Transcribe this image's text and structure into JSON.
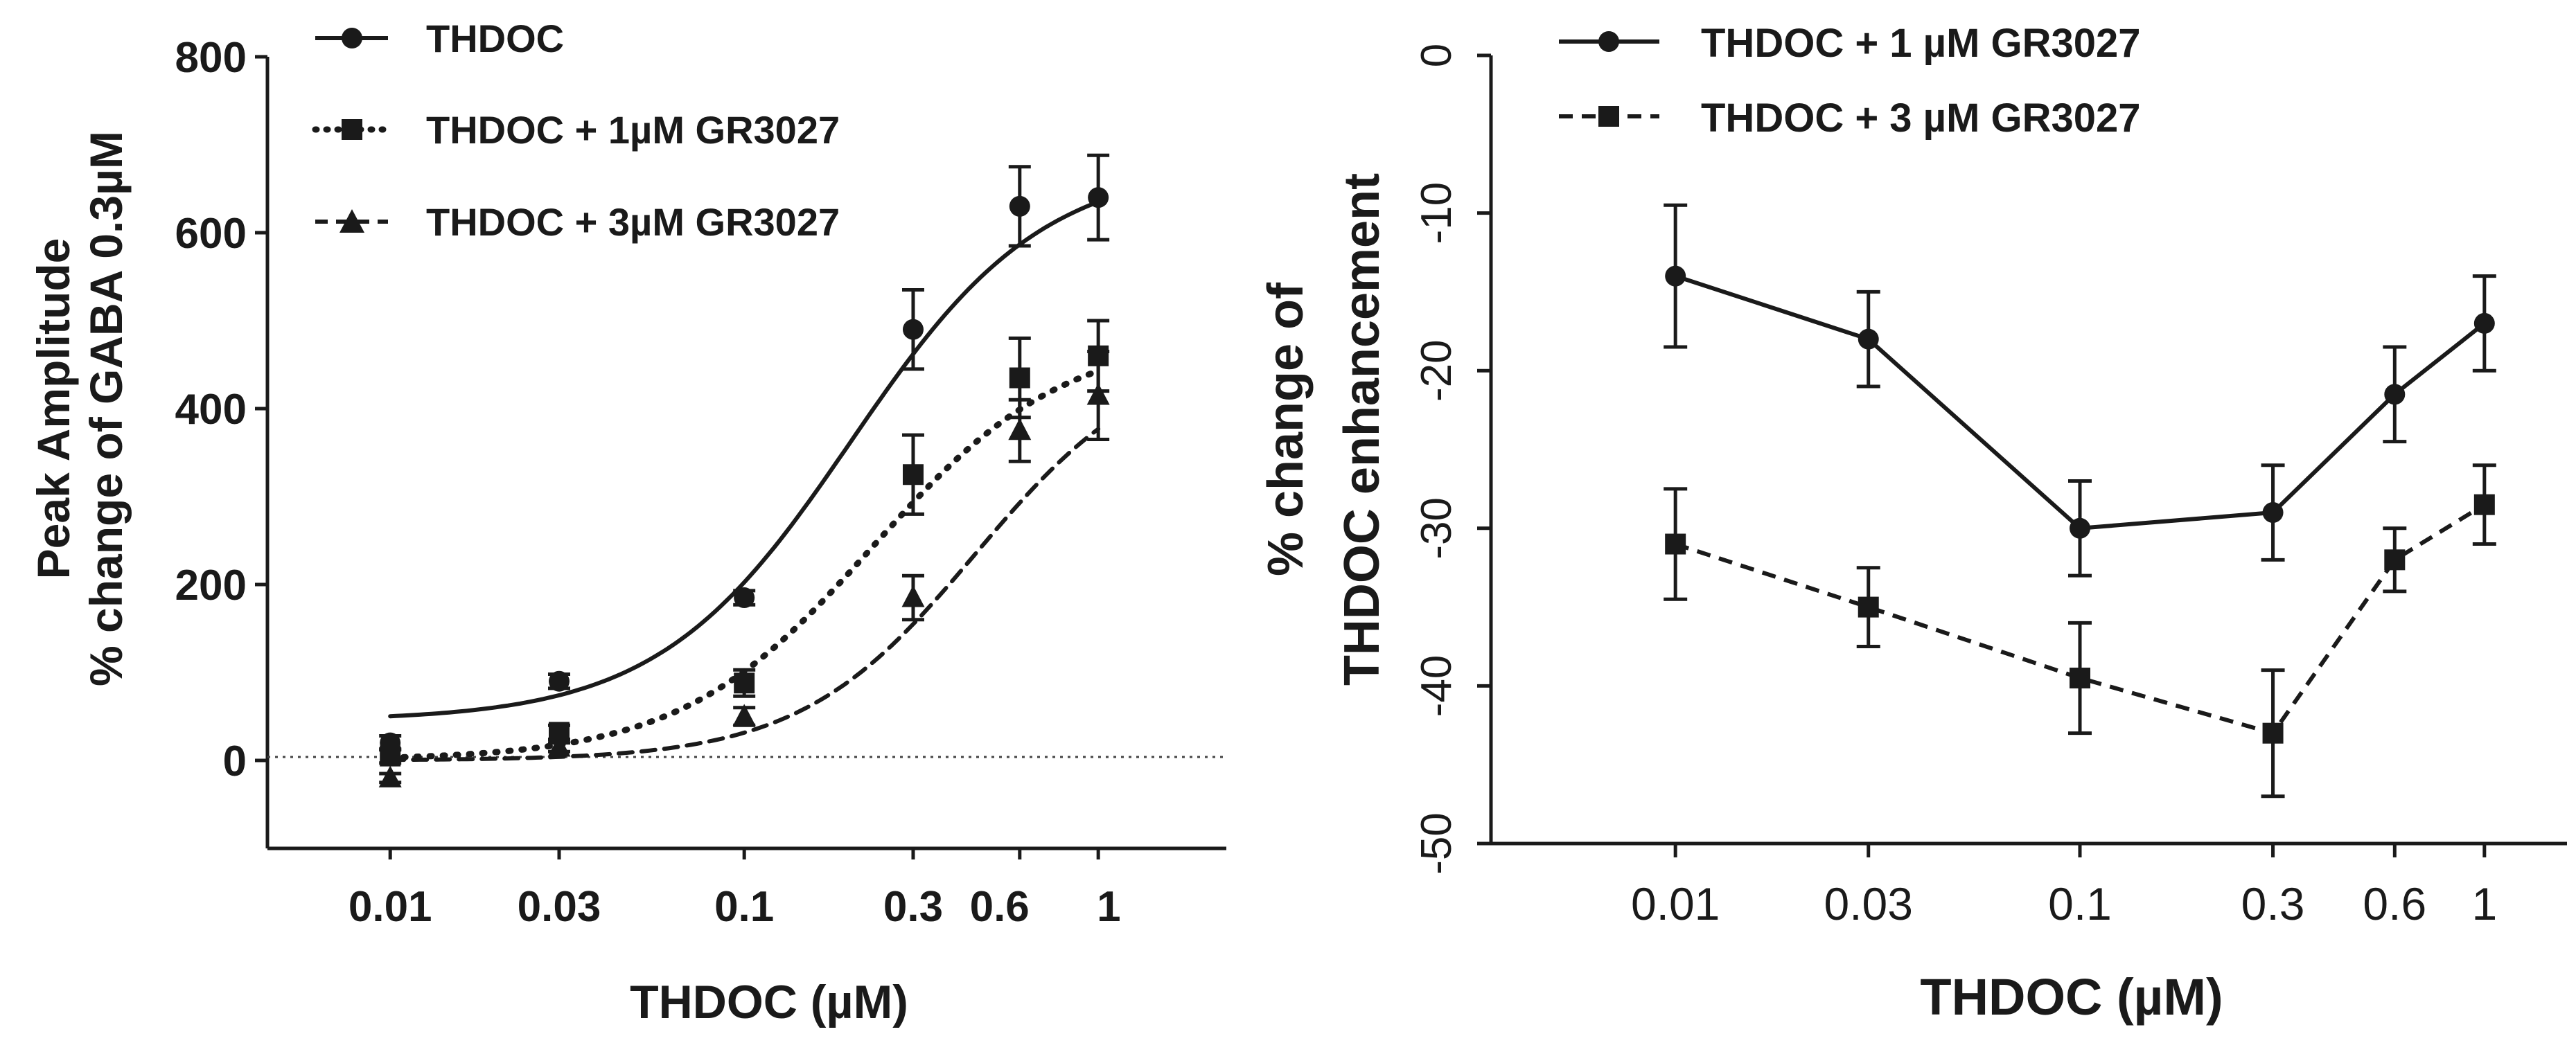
{
  "chart_data": [
    {
      "type": "line",
      "panel": "left",
      "xscale": "log",
      "xlabel": "THDOC (µM)",
      "ylabel_lines": [
        "Peak Amplitude",
        "% change of GABA 0.3µM"
      ],
      "x_tick_labels": [
        "0.01",
        "0.03",
        "0.1",
        "0.3",
        "0.6",
        "1"
      ],
      "x_tick_values": [
        0.01,
        0.03,
        0.1,
        0.3,
        0.6,
        1
      ],
      "y_ticks": [
        0,
        200,
        400,
        600,
        800
      ],
      "ylim": [
        -100,
        800
      ],
      "xlim": [
        0.0045,
        2.3
      ],
      "reference_line": 0,
      "legend_position": "top-left",
      "series": [
        {
          "name": "THDOC",
          "marker": "circle",
          "line": "solid",
          "x": [
            0.01,
            0.03,
            0.1,
            0.3,
            0.6,
            1
          ],
          "values": [
            20,
            90,
            185,
            490,
            630,
            640
          ],
          "errors": [
            8,
            8,
            8,
            45,
            45,
            48
          ],
          "fit": {
            "bottom": 45,
            "top": 680,
            "ec50": 0.2,
            "hill": 1.6
          }
        },
        {
          "name": "THDOC + 1µM GR3027",
          "marker": "square",
          "line": "dotted",
          "x": [
            0.01,
            0.03,
            0.1,
            0.3,
            0.6,
            1
          ],
          "values": [
            5,
            32,
            88,
            325,
            435,
            460
          ],
          "errors": [
            8,
            8,
            15,
            45,
            45,
            40
          ],
          "fit": {
            "bottom": 0,
            "top": 485,
            "ec50": 0.23,
            "hill": 1.6
          }
        },
        {
          "name": "THDOC + 3µM GR3027",
          "marker": "triangle",
          "line": "dashed",
          "x": [
            0.01,
            0.03,
            0.1,
            0.3,
            0.6,
            1
          ],
          "values": [
            -20,
            15,
            50,
            185,
            375,
            415
          ],
          "errors": [
            5,
            5,
            10,
            25,
            35,
            50
          ],
          "fit": {
            "bottom": 0,
            "top": 470,
            "ec50": 0.45,
            "hill": 1.75
          }
        }
      ]
    },
    {
      "type": "line",
      "panel": "right",
      "xlabel": "THDOC (µM)",
      "ylabel_lines": [
        "% change of",
        "THDOC enhancement"
      ],
      "categories": [
        "0.01",
        "0.03",
        "0.1",
        "0.3",
        "0.6",
        "1"
      ],
      "x_tick_values": [
        0.01,
        0.03,
        0.1,
        0.3,
        0.6,
        1
      ],
      "xscale": "log",
      "xlim": [
        0.0035,
        1.6
      ],
      "y_ticks": [
        0,
        -10,
        -20,
        -30,
        -40,
        -50
      ],
      "ylim": [
        -50,
        0
      ],
      "legend_position": "top",
      "series": [
        {
          "name": "THDOC + 1 µM GR3027",
          "marker": "circle",
          "line": "solid",
          "values": [
            -14,
            -18,
            -30,
            -29,
            -21.5,
            -17
          ],
          "errors": [
            4.5,
            3,
            3,
            3,
            3,
            3
          ]
        },
        {
          "name": "THDOC + 3 µM GR3027",
          "marker": "square",
          "line": "dashed",
          "values": [
            -31,
            -35,
            -39.5,
            -43,
            -32,
            -28.5
          ],
          "errors": [
            3.5,
            2.5,
            3.5,
            4,
            2,
            2.5
          ]
        }
      ]
    }
  ]
}
